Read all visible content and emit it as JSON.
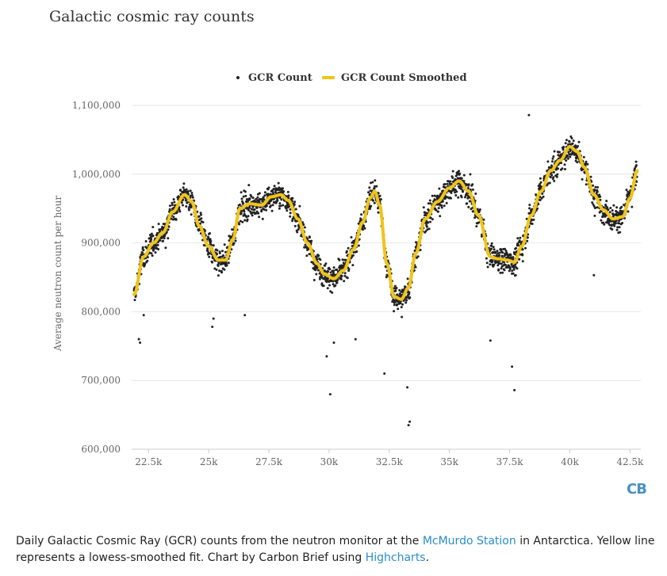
{
  "chart_data": {
    "type": "scatter",
    "title": "Galactic cosmic ray counts",
    "ylabel": "Average neutron count per hour",
    "xlabel": "",
    "xlim": [
      21800,
      42950
    ],
    "ylim": [
      600000,
      1100000
    ],
    "x_ticks": [
      22500,
      25000,
      27500,
      30000,
      32500,
      35000,
      37500,
      40000,
      42500
    ],
    "x_tick_labels": [
      "22.5k",
      "25k",
      "27.5k",
      "30k",
      "32.5k",
      "35k",
      "37.5k",
      "40k",
      "42.5k"
    ],
    "y_ticks": [
      600000,
      700000,
      800000,
      900000,
      1000000,
      1100000
    ],
    "y_tick_labels": [
      "600,000",
      "700,000",
      "800,000",
      "900,000",
      "1,000,000",
      "1,100,000"
    ],
    "grid": true,
    "legend_position": "top-center",
    "series": [
      {
        "name": "GCR Count",
        "type": "scatter",
        "color": "#222222",
        "x_range": [
          21900,
          42800
        ],
        "sample_step_days": 8,
        "outliers": [
          [
            22100,
            760000
          ],
          [
            22150,
            755000
          ],
          [
            22300,
            795000
          ],
          [
            25150,
            778000
          ],
          [
            25200,
            790000
          ],
          [
            26500,
            795000
          ],
          [
            29900,
            735000
          ],
          [
            30050,
            680000
          ],
          [
            30200,
            755000
          ],
          [
            31100,
            760000
          ],
          [
            32300,
            710000
          ],
          [
            33250,
            690000
          ],
          [
            33300,
            635000
          ],
          [
            33350,
            640000
          ],
          [
            36700,
            758000
          ],
          [
            37600,
            720000
          ],
          [
            37700,
            686000
          ],
          [
            38300,
            1086000
          ],
          [
            41000,
            853000
          ]
        ]
      },
      {
        "name": "GCR Count Smoothed",
        "type": "line",
        "color": "#f0c419",
        "x": [
          21900,
          22300,
          22700,
          23100,
          23500,
          24000,
          24300,
          24600,
          25000,
          25400,
          25700,
          26000,
          26300,
          26700,
          27200,
          27600,
          28000,
          28300,
          28700,
          29100,
          29500,
          29800,
          30200,
          30600,
          31000,
          31400,
          31700,
          31900,
          32100,
          32400,
          32700,
          33000,
          33300,
          33600,
          34000,
          34500,
          35000,
          35400,
          35800,
          36200,
          36700,
          37000,
          37400,
          37700,
          38000,
          38400,
          38800,
          39200,
          39600,
          40000,
          40300,
          40600,
          41000,
          41400,
          41800,
          42200,
          42500,
          42800
        ],
        "values": [
          825000,
          880000,
          900000,
          915000,
          945000,
          970000,
          960000,
          925000,
          895000,
          875000,
          875000,
          905000,
          950000,
          957000,
          955000,
          967000,
          970000,
          962000,
          935000,
          900000,
          870000,
          855000,
          848000,
          860000,
          890000,
          930000,
          965000,
          975000,
          955000,
          870000,
          822000,
          818000,
          835000,
          885000,
          935000,
          960000,
          980000,
          990000,
          975000,
          940000,
          880000,
          877000,
          875000,
          872000,
          895000,
          940000,
          975000,
          1005000,
          1020000,
          1040000,
          1033000,
          1010000,
          970000,
          948000,
          935000,
          938000,
          965000,
          1005000
        ]
      }
    ]
  },
  "caption": {
    "part1": "Daily Galactic Cosmic Ray (GCR) counts from the neutron monitor at the ",
    "link1": "McMurdo Station",
    "part2": " in Antarctica. Yellow line represents a lowess-smoothed fit. Chart by Carbon Brief using ",
    "link2": "Highcharts",
    "part3": "."
  },
  "logo_text": "CB"
}
